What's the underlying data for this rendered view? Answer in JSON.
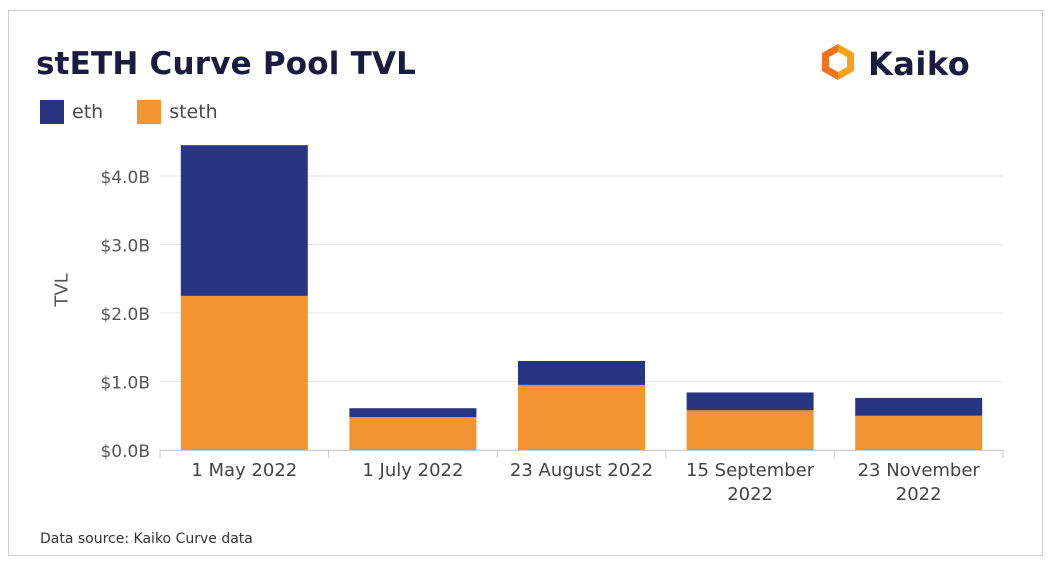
{
  "header": {
    "title": "stETH Curve Pool TVL"
  },
  "logo": {
    "text": "Kaiko",
    "icon": "kaiko-logo-icon"
  },
  "source_note": "Data source: Kaiko Curve data",
  "colors": {
    "eth": "#283583",
    "steth": "#f39332",
    "title": "#1b1a3f"
  },
  "chart_data": {
    "type": "bar",
    "stacked": true,
    "title": "stETH Curve Pool TVL",
    "xlabel": "",
    "ylabel": "TVL",
    "categories": [
      "1 May 2022",
      "1 July 2022",
      "23 August 2022",
      "15 September 2022",
      "23 November 2022"
    ],
    "category_lines": [
      [
        "1 May 2022"
      ],
      [
        "1 July 2022"
      ],
      [
        "23 August 2022"
      ],
      [
        "15 September",
        "2022"
      ],
      [
        "23 November",
        "2022"
      ]
    ],
    "series": [
      {
        "name": "eth",
        "color": "#283583",
        "values": [
          2.2,
          0.13,
          0.35,
          0.26,
          0.26
        ]
      },
      {
        "name": "steth",
        "color": "#f39332",
        "values": [
          2.25,
          0.48,
          0.95,
          0.58,
          0.5
        ]
      }
    ],
    "ylim": [
      0,
      4.4
    ],
    "yticks": [
      0,
      1,
      2,
      3,
      4
    ],
    "ytick_labels": [
      "$0.0B",
      "$1.0B",
      "$2.0B",
      "$3.0B",
      "$4.0B"
    ],
    "grid": true,
    "legend": "top-left"
  }
}
